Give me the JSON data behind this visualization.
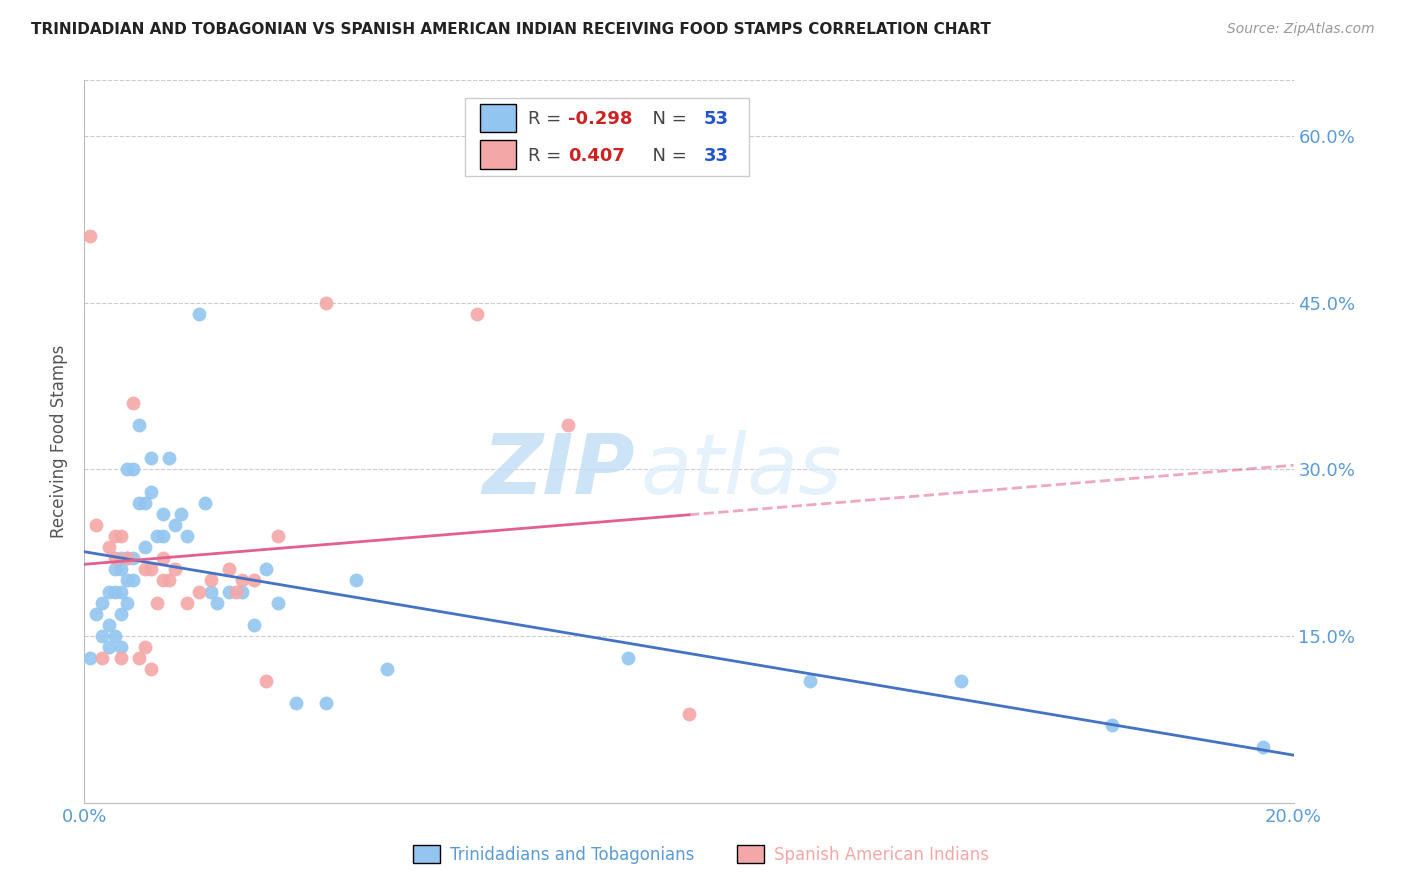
{
  "title": "TRINIDADIAN AND TOBAGONIAN VS SPANISH AMERICAN INDIAN RECEIVING FOOD STAMPS CORRELATION CHART",
  "source": "Source: ZipAtlas.com",
  "ylabel": "Receiving Food Stamps",
  "xlim": [
    0.0,
    0.2
  ],
  "ylim": [
    0.0,
    0.65
  ],
  "color_blue": "#92c5f0",
  "color_pink": "#f4a7a7",
  "line_blue": "#4472c4",
  "line_pink": "#e06090",
  "axis_color": "#5b9bd5",
  "series1_label": "Trinidadians and Tobagonians",
  "series2_label": "Spanish American Indians",
  "blue_x": [
    0.001,
    0.002,
    0.003,
    0.003,
    0.004,
    0.004,
    0.004,
    0.005,
    0.005,
    0.005,
    0.006,
    0.006,
    0.006,
    0.006,
    0.006,
    0.007,
    0.007,
    0.007,
    0.007,
    0.008,
    0.008,
    0.008,
    0.009,
    0.009,
    0.01,
    0.01,
    0.011,
    0.011,
    0.012,
    0.013,
    0.013,
    0.014,
    0.015,
    0.016,
    0.017,
    0.019,
    0.02,
    0.021,
    0.022,
    0.024,
    0.026,
    0.028,
    0.03,
    0.032,
    0.035,
    0.04,
    0.045,
    0.05,
    0.09,
    0.12,
    0.145,
    0.17,
    0.195
  ],
  "blue_y": [
    0.13,
    0.17,
    0.15,
    0.18,
    0.14,
    0.19,
    0.16,
    0.15,
    0.19,
    0.21,
    0.14,
    0.17,
    0.19,
    0.21,
    0.22,
    0.18,
    0.2,
    0.22,
    0.3,
    0.2,
    0.22,
    0.3,
    0.27,
    0.34,
    0.23,
    0.27,
    0.28,
    0.31,
    0.24,
    0.24,
    0.26,
    0.31,
    0.25,
    0.26,
    0.24,
    0.44,
    0.27,
    0.19,
    0.18,
    0.19,
    0.19,
    0.16,
    0.21,
    0.18,
    0.09,
    0.09,
    0.2,
    0.12,
    0.13,
    0.11,
    0.11,
    0.07,
    0.05
  ],
  "pink_x": [
    0.001,
    0.002,
    0.003,
    0.004,
    0.005,
    0.005,
    0.006,
    0.006,
    0.007,
    0.008,
    0.009,
    0.01,
    0.01,
    0.011,
    0.011,
    0.012,
    0.013,
    0.013,
    0.014,
    0.015,
    0.017,
    0.019,
    0.021,
    0.024,
    0.025,
    0.026,
    0.028,
    0.03,
    0.032,
    0.04,
    0.065,
    0.08,
    0.1
  ],
  "pink_y": [
    0.51,
    0.25,
    0.13,
    0.23,
    0.24,
    0.22,
    0.13,
    0.24,
    0.22,
    0.36,
    0.13,
    0.14,
    0.21,
    0.12,
    0.21,
    0.18,
    0.2,
    0.22,
    0.2,
    0.21,
    0.18,
    0.19,
    0.2,
    0.21,
    0.19,
    0.2,
    0.2,
    0.11,
    0.24,
    0.45,
    0.44,
    0.34,
    0.08
  ],
  "blue_r": -0.298,
  "blue_n": 53,
  "pink_r": 0.407,
  "pink_n": 33,
  "watermark_zip": "ZIP",
  "watermark_atlas": "atlas",
  "background_color": "#ffffff",
  "grid_color": "#cccccc",
  "ytick_vals": [
    0.15,
    0.3,
    0.45,
    0.6
  ],
  "ytick_labels": [
    "15.0%",
    "30.0%",
    "45.0%",
    "60.0%"
  ]
}
